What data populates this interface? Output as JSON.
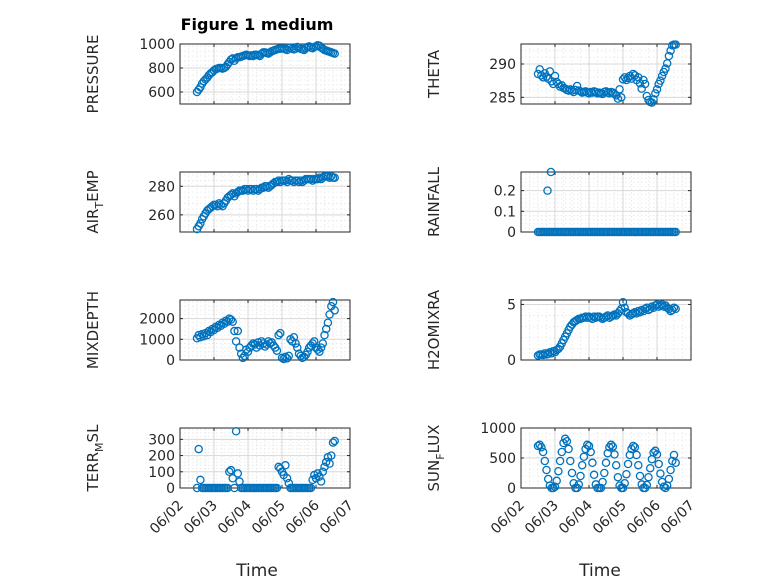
{
  "figure": {
    "title": "Figure 1 medium",
    "xlabel": "Time",
    "x_ticks": [
      "06/02",
      "06/03",
      "06/04",
      "06/05",
      "06/06",
      "06/07"
    ],
    "marker_color": "#0072bd"
  },
  "chart_data": [
    {
      "type": "scatter",
      "ylabel": "PRESSURE",
      "ylim": [
        500,
        1000
      ],
      "yticks": [
        600,
        800,
        1000
      ],
      "x_range": [
        "06/02",
        "06/07"
      ],
      "x": [
        2.5,
        2.55,
        2.6,
        2.65,
        2.7,
        2.75,
        2.8,
        2.85,
        2.9,
        2.95,
        3.0,
        3.05,
        3.1,
        3.15,
        3.2,
        3.25,
        3.3,
        3.35,
        3.4,
        3.45,
        3.5,
        3.55,
        3.6,
        3.65,
        3.7,
        3.75,
        3.8,
        3.85,
        3.9,
        3.95,
        4.0,
        4.05,
        4.1,
        4.15,
        4.2,
        4.25,
        4.3,
        4.35,
        4.4,
        4.45,
        4.5,
        4.55,
        4.6,
        4.65,
        4.7,
        4.75,
        4.8,
        4.85,
        4.9,
        4.95,
        5.0,
        5.05,
        5.1,
        5.15,
        5.2,
        5.25,
        5.3,
        5.35,
        5.4,
        5.45,
        5.5,
        5.55,
        5.6,
        5.65,
        5.7,
        5.75,
        5.8,
        5.85,
        5.9,
        5.95,
        6.0,
        6.05,
        6.1,
        6.15,
        6.2,
        6.25,
        6.3,
        6.35,
        6.4,
        6.45,
        6.5,
        6.55
      ],
      "y": [
        600,
        620,
        640,
        670,
        690,
        705,
        720,
        740,
        755,
        765,
        780,
        790,
        795,
        800,
        800,
        795,
        800,
        810,
        830,
        850,
        870,
        880,
        860,
        880,
        890,
        890,
        895,
        900,
        905,
        910,
        905,
        900,
        905,
        900,
        910,
        910,
        905,
        900,
        920,
        930,
        930,
        925,
        920,
        930,
        940,
        945,
        950,
        955,
        960,
        960,
        965,
        960,
        955,
        950,
        970,
        970,
        960,
        955,
        960,
        975,
        970,
        960,
        955,
        950,
        965,
        975,
        980,
        970,
        965,
        975,
        980,
        990,
        985,
        970,
        960,
        950,
        945,
        940,
        935,
        930,
        925,
        920
      ]
    },
    {
      "type": "scatter",
      "ylabel": "THETA",
      "ylim": [
        284,
        293
      ],
      "yticks": [
        285,
        290
      ],
      "x_range": [
        "06/02",
        "06/07"
      ],
      "x": [
        2.5,
        2.55,
        2.6,
        2.65,
        2.7,
        2.75,
        2.8,
        2.85,
        2.9,
        2.95,
        3.0,
        3.05,
        3.1,
        3.15,
        3.2,
        3.25,
        3.3,
        3.35,
        3.4,
        3.45,
        3.5,
        3.55,
        3.6,
        3.65,
        3.7,
        3.75,
        3.8,
        3.85,
        3.9,
        3.95,
        4.0,
        4.05,
        4.1,
        4.15,
        4.2,
        4.25,
        4.3,
        4.35,
        4.4,
        4.45,
        4.5,
        4.55,
        4.6,
        4.65,
        4.7,
        4.75,
        4.8,
        4.85,
        4.9,
        4.95,
        5.0,
        5.05,
        5.1,
        5.15,
        5.2,
        5.25,
        5.3,
        5.35,
        5.4,
        5.45,
        5.5,
        5.55,
        5.6,
        5.65,
        5.7,
        5.75,
        5.8,
        5.85,
        5.9,
        5.95,
        6.0,
        6.05,
        6.1,
        6.15,
        6.2,
        6.25,
        6.3,
        6.35,
        6.4,
        6.45,
        6.5,
        6.55
      ],
      "y": [
        288.5,
        289.2,
        288.3,
        288.0,
        288.6,
        288.1,
        287.8,
        288.9,
        287.4,
        287.0,
        288.2,
        287.3,
        287.0,
        286.6,
        286.8,
        286.4,
        286.3,
        286.1,
        286.0,
        286.2,
        286.0,
        285.8,
        286.1,
        286.7,
        286.0,
        285.9,
        285.7,
        285.8,
        285.9,
        285.7,
        285.6,
        285.8,
        285.7,
        285.9,
        285.8,
        285.6,
        285.7,
        285.6,
        285.5,
        285.8,
        285.9,
        285.7,
        285.6,
        285.8,
        285.7,
        285.5,
        285.3,
        284.8,
        286.2,
        285.0,
        287.7,
        288.0,
        287.6,
        287.9,
        288.2,
        287.8,
        288.5,
        288.3,
        287.6,
        288.0,
        287.1,
        286.3,
        287.6,
        287.0,
        285.2,
        284.6,
        284.3,
        284.2,
        284.7,
        285.6,
        286.2,
        287.0,
        287.5,
        288.2,
        288.8,
        289.3,
        290.1,
        291.2,
        292.0,
        292.8,
        292.9,
        292.9
      ]
    },
    {
      "type": "scatter",
      "ylabel": "AIR_TEMP",
      "ylim": [
        248,
        290
      ],
      "yticks": [
        260,
        280
      ],
      "x_range": [
        "06/02",
        "06/07"
      ],
      "x": [
        2.5,
        2.55,
        2.6,
        2.65,
        2.7,
        2.75,
        2.8,
        2.85,
        2.9,
        2.95,
        3.0,
        3.05,
        3.1,
        3.15,
        3.2,
        3.25,
        3.3,
        3.35,
        3.4,
        3.45,
        3.5,
        3.55,
        3.6,
        3.65,
        3.7,
        3.75,
        3.8,
        3.85,
        3.9,
        3.95,
        4.0,
        4.05,
        4.1,
        4.15,
        4.2,
        4.25,
        4.3,
        4.35,
        4.4,
        4.45,
        4.5,
        4.55,
        4.6,
        4.65,
        4.7,
        4.75,
        4.8,
        4.85,
        4.9,
        4.95,
        5.0,
        5.05,
        5.1,
        5.15,
        5.2,
        5.25,
        5.3,
        5.35,
        5.4,
        5.45,
        5.5,
        5.55,
        5.6,
        5.65,
        5.7,
        5.75,
        5.8,
        5.85,
        5.9,
        5.95,
        6.0,
        6.05,
        6.1,
        6.15,
        6.2,
        6.25,
        6.3,
        6.35,
        6.4,
        6.45,
        6.5,
        6.55
      ],
      "y": [
        250,
        252,
        254,
        257,
        259,
        261,
        263,
        264,
        265,
        266,
        267,
        267,
        266,
        268,
        267,
        266,
        268,
        270,
        272,
        273,
        274,
        275,
        273,
        275,
        276,
        277,
        277,
        277,
        278,
        278,
        277,
        278,
        278,
        277,
        278,
        278,
        277,
        278,
        279,
        279,
        280,
        280,
        279,
        280,
        281,
        282,
        283,
        283,
        284,
        283,
        284,
        284,
        284,
        283,
        285,
        284,
        284,
        283,
        284,
        284,
        283,
        284,
        283,
        284,
        285,
        285,
        285,
        285,
        284,
        285,
        285,
        285,
        286,
        285,
        286,
        287,
        287,
        287,
        286,
        287,
        286,
        286
      ]
    },
    {
      "type": "scatter",
      "ylabel": "RAINFALL",
      "ylim": [
        0,
        0.29
      ],
      "yticks": [
        0,
        0.1,
        0.2
      ],
      "x_range": [
        "06/02",
        "06/07"
      ],
      "x": [
        2.5,
        2.55,
        2.6,
        2.65,
        2.7,
        2.75,
        2.8,
        2.85,
        2.9,
        2.95,
        3.0,
        3.05,
        3.1,
        3.15,
        3.2,
        3.25,
        3.3,
        3.35,
        3.4,
        3.45,
        3.5,
        3.55,
        3.6,
        3.65,
        3.7,
        3.75,
        3.8,
        3.85,
        3.9,
        3.95,
        4.0,
        4.05,
        4.1,
        4.15,
        4.2,
        4.25,
        4.3,
        4.35,
        4.4,
        4.45,
        4.5,
        4.55,
        4.6,
        4.65,
        4.7,
        4.75,
        4.8,
        4.85,
        4.9,
        4.95,
        5.0,
        5.05,
        5.1,
        5.15,
        5.2,
        5.25,
        5.3,
        5.35,
        5.4,
        5.45,
        5.5,
        5.55,
        5.6,
        5.65,
        5.7,
        5.75,
        5.8,
        5.85,
        5.9,
        5.95,
        6.0,
        6.05,
        6.1,
        6.15,
        6.2,
        6.25,
        6.3,
        6.35,
        6.4,
        6.45,
        6.5,
        6.55,
        2.78,
        2.88
      ],
      "y": [
        0,
        0,
        0,
        0,
        0,
        0,
        0,
        0,
        0,
        0,
        0,
        0,
        0,
        0,
        0,
        0,
        0,
        0,
        0,
        0,
        0,
        0,
        0,
        0,
        0,
        0,
        0,
        0,
        0,
        0,
        0,
        0,
        0,
        0,
        0,
        0,
        0,
        0,
        0,
        0,
        0,
        0,
        0,
        0,
        0,
        0,
        0,
        0,
        0,
        0,
        0,
        0,
        0,
        0,
        0,
        0,
        0,
        0,
        0,
        0,
        0,
        0,
        0,
        0,
        0,
        0,
        0,
        0,
        0,
        0,
        0,
        0,
        0,
        0,
        0,
        0,
        0,
        0,
        0,
        0,
        0,
        0,
        0.2,
        0.29
      ]
    },
    {
      "type": "scatter",
      "ylabel": "MIXDEPTH",
      "ylim": [
        0,
        2900
      ],
      "yticks": [
        0,
        1000,
        2000
      ],
      "x_range": [
        "06/02",
        "06/07"
      ],
      "x": [
        2.5,
        2.55,
        2.6,
        2.65,
        2.7,
        2.75,
        2.8,
        2.85,
        2.9,
        2.95,
        3.0,
        3.05,
        3.1,
        3.15,
        3.2,
        3.25,
        3.3,
        3.35,
        3.4,
        3.45,
        3.5,
        3.55,
        3.6,
        3.65,
        3.7,
        3.75,
        3.8,
        3.85,
        3.9,
        3.95,
        4.0,
        4.05,
        4.1,
        4.15,
        4.2,
        4.25,
        4.3,
        4.35,
        4.4,
        4.45,
        4.5,
        4.55,
        4.6,
        4.65,
        4.7,
        4.75,
        4.8,
        4.85,
        4.9,
        4.95,
        5.0,
        5.05,
        5.1,
        5.15,
        5.2,
        5.25,
        5.3,
        5.35,
        5.4,
        5.45,
        5.5,
        5.55,
        5.6,
        5.65,
        5.7,
        5.75,
        5.8,
        5.85,
        5.9,
        5.95,
        6.0,
        6.05,
        6.1,
        6.15,
        6.2,
        6.25,
        6.3,
        6.35,
        6.4,
        6.45,
        6.5,
        6.55
      ],
      "y": [
        1050,
        1200,
        1100,
        1250,
        1150,
        1300,
        1200,
        1400,
        1350,
        1500,
        1450,
        1600,
        1550,
        1700,
        1650,
        1800,
        1750,
        1900,
        1850,
        2000,
        1950,
        1850,
        1400,
        900,
        1400,
        600,
        300,
        100,
        200,
        500,
        400,
        600,
        700,
        800,
        750,
        600,
        850,
        700,
        900,
        800,
        650,
        750,
        900,
        800,
        850,
        700,
        600,
        450,
        1200,
        1300,
        100,
        50,
        150,
        80,
        200,
        1000,
        900,
        1100,
        800,
        600,
        300,
        200,
        100,
        150,
        250,
        400,
        600,
        700,
        800,
        900,
        600,
        500,
        400,
        600,
        800,
        1200,
        1500,
        1800,
        2200,
        2600,
        2800,
        2400
      ]
    },
    {
      "type": "scatter",
      "ylabel": "H2OMIXRA",
      "ylim": [
        0,
        5.4
      ],
      "yticks": [
        0,
        5
      ],
      "x_range": [
        "06/02",
        "06/07"
      ],
      "x": [
        2.5,
        2.55,
        2.6,
        2.65,
        2.7,
        2.75,
        2.8,
        2.85,
        2.9,
        2.95,
        3.0,
        3.05,
        3.1,
        3.15,
        3.2,
        3.25,
        3.3,
        3.35,
        3.4,
        3.45,
        3.5,
        3.55,
        3.6,
        3.65,
        3.7,
        3.75,
        3.8,
        3.85,
        3.9,
        3.95,
        4.0,
        4.05,
        4.1,
        4.15,
        4.2,
        4.25,
        4.3,
        4.35,
        4.4,
        4.45,
        4.5,
        4.55,
        4.6,
        4.65,
        4.7,
        4.75,
        4.8,
        4.85,
        4.9,
        4.95,
        5.0,
        5.05,
        5.1,
        5.15,
        5.2,
        5.25,
        5.3,
        5.35,
        5.4,
        5.45,
        5.5,
        5.55,
        5.6,
        5.65,
        5.7,
        5.75,
        5.8,
        5.85,
        5.9,
        5.95,
        6.0,
        6.05,
        6.1,
        6.15,
        6.2,
        6.25,
        6.3,
        6.35,
        6.4,
        6.45,
        6.5,
        6.55
      ],
      "y": [
        0.4,
        0.5,
        0.5,
        0.45,
        0.6,
        0.5,
        0.55,
        0.7,
        0.6,
        0.8,
        0.7,
        0.9,
        1.0,
        1.2,
        1.5,
        1.8,
        2.1,
        2.4,
        2.7,
        3.0,
        3.2,
        3.4,
        3.5,
        3.6,
        3.7,
        3.7,
        3.8,
        3.8,
        3.9,
        3.8,
        3.9,
        3.8,
        3.7,
        3.9,
        3.8,
        3.9,
        3.9,
        3.8,
        3.7,
        3.8,
        3.9,
        4.0,
        3.8,
        3.9,
        4.0,
        4.1,
        4.0,
        4.2,
        4.4,
        4.6,
        5.2,
        4.7,
        4.3,
        4.2,
        4.0,
        4.1,
        4.2,
        4.3,
        4.2,
        4.4,
        4.3,
        4.5,
        4.4,
        4.6,
        4.7,
        4.5,
        4.6,
        4.8,
        4.7,
        4.9,
        5.0,
        4.8,
        4.9,
        5.0,
        4.8,
        4.9,
        4.7,
        4.6,
        4.4,
        4.5,
        4.7,
        4.6
      ]
    },
    {
      "type": "scatter",
      "ylabel": "TERR_MSL",
      "ylim": [
        0,
        370
      ],
      "yticks": [
        0,
        100,
        200,
        300
      ],
      "x_range": [
        "06/02",
        "06/07"
      ],
      "x": [
        2.5,
        2.55,
        2.6,
        2.65,
        2.7,
        2.75,
        2.8,
        2.85,
        2.9,
        2.95,
        3.0,
        3.05,
        3.1,
        3.15,
        3.2,
        3.25,
        3.3,
        3.35,
        3.4,
        3.45,
        3.5,
        3.55,
        3.6,
        3.65,
        3.7,
        3.75,
        3.8,
        3.85,
        3.9,
        3.95,
        4.0,
        4.05,
        4.1,
        4.15,
        4.2,
        4.25,
        4.3,
        4.35,
        4.4,
        4.45,
        4.5,
        4.55,
        4.6,
        4.65,
        4.7,
        4.75,
        4.8,
        4.85,
        4.9,
        4.95,
        5.0,
        5.05,
        5.1,
        5.15,
        5.2,
        5.25,
        5.3,
        5.35,
        5.4,
        5.45,
        5.5,
        5.55,
        5.6,
        5.65,
        5.7,
        5.75,
        5.8,
        5.85,
        5.9,
        5.95,
        6.0,
        6.05,
        6.1,
        6.15,
        6.2,
        6.25,
        6.3,
        6.35,
        6.4,
        6.45,
        6.5,
        6.55
      ],
      "y": [
        0,
        240,
        50,
        0,
        0,
        0,
        0,
        0,
        0,
        0,
        0,
        0,
        0,
        0,
        0,
        0,
        0,
        0,
        0,
        100,
        110,
        60,
        0,
        350,
        90,
        40,
        0,
        0,
        0,
        0,
        0,
        0,
        0,
        0,
        0,
        0,
        0,
        0,
        0,
        0,
        0,
        0,
        0,
        0,
        0,
        0,
        0,
        0,
        130,
        120,
        100,
        80,
        140,
        60,
        30,
        0,
        0,
        0,
        0,
        0,
        0,
        0,
        0,
        0,
        0,
        0,
        0,
        0,
        50,
        80,
        60,
        90,
        70,
        40,
        100,
        130,
        160,
        190,
        150,
        200,
        280,
        290
      ]
    },
    {
      "type": "scatter",
      "ylabel": "SUN_FLUX",
      "ylim": [
        0,
        1000
      ],
      "yticks": [
        0,
        500,
        1000
      ],
      "x_range": [
        "06/02",
        "06/07"
      ],
      "x": [
        2.5,
        2.55,
        2.6,
        2.65,
        2.7,
        2.75,
        2.8,
        2.85,
        2.9,
        2.95,
        3.0,
        3.05,
        3.1,
        3.15,
        3.2,
        3.25,
        3.3,
        3.35,
        3.4,
        3.45,
        3.5,
        3.55,
        3.6,
        3.65,
        3.7,
        3.75,
        3.8,
        3.85,
        3.9,
        3.95,
        4.0,
        4.05,
        4.1,
        4.15,
        4.2,
        4.25,
        4.3,
        4.35,
        4.4,
        4.45,
        4.5,
        4.55,
        4.6,
        4.65,
        4.7,
        4.75,
        4.8,
        4.85,
        4.9,
        4.95,
        5.0,
        5.05,
        5.1,
        5.15,
        5.2,
        5.25,
        5.3,
        5.35,
        5.4,
        5.45,
        5.5,
        5.55,
        5.6,
        5.65,
        5.7,
        5.75,
        5.8,
        5.85,
        5.9,
        5.95,
        6.0,
        6.05,
        6.1,
        6.15,
        6.2,
        6.25,
        6.3,
        6.35,
        6.4,
        6.45,
        6.5,
        6.55
      ],
      "y": [
        700,
        720,
        680,
        600,
        450,
        300,
        150,
        40,
        0,
        0,
        20,
        120,
        280,
        450,
        600,
        750,
        820,
        780,
        650,
        450,
        250,
        80,
        0,
        0,
        60,
        200,
        380,
        520,
        650,
        720,
        700,
        600,
        420,
        220,
        60,
        0,
        0,
        0,
        100,
        250,
        420,
        580,
        680,
        720,
        690,
        560,
        380,
        180,
        40,
        0,
        0,
        80,
        230,
        400,
        550,
        650,
        700,
        680,
        550,
        380,
        200,
        60,
        0,
        0,
        50,
        180,
        330,
        480,
        590,
        620,
        560,
        400,
        240,
        100,
        20,
        0,
        40,
        150,
        300,
        450,
        550,
        420
      ]
    }
  ]
}
